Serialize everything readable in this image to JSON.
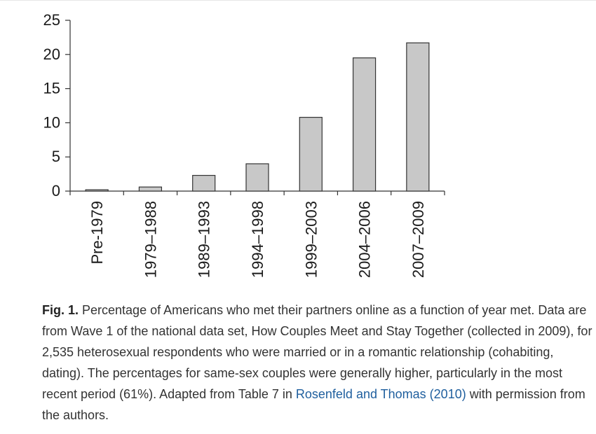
{
  "chart_data": {
    "type": "bar",
    "categories": [
      "Pre-1979",
      "1979–1988",
      "1989–1993",
      "1994–1998",
      "1999–2003",
      "2004–2006",
      "2007–2009"
    ],
    "values": [
      0.2,
      0.6,
      2.3,
      4.0,
      10.8,
      19.5,
      21.7
    ],
    "ylim": [
      0,
      25
    ],
    "yticks": [
      0,
      5,
      10,
      15,
      20,
      25
    ],
    "title": "",
    "xlabel": "",
    "ylabel": "",
    "grid": false,
    "bar_color": "#c8c8c8",
    "bar_edge_color": "#333333"
  },
  "caption": {
    "fig_label": "Fig. 1.",
    "text_before_link": " Percentage of Americans who met their partners online as a function of year met. Data are from Wave 1 of the national data set, How Couples Meet and Stay Together (collected in 2009), for 2,535 heterosexual respondents who were married or in a romantic relationship (cohabiting, dating). The percentages for same-sex couples were generally higher, particularly in the most recent period (61%). Adapted from Table 7 in ",
    "link_text": "Rosenfeld and Thomas (2010)",
    "text_after_link": " with permission from the authors.",
    "link_color": "#1f5f9e"
  }
}
